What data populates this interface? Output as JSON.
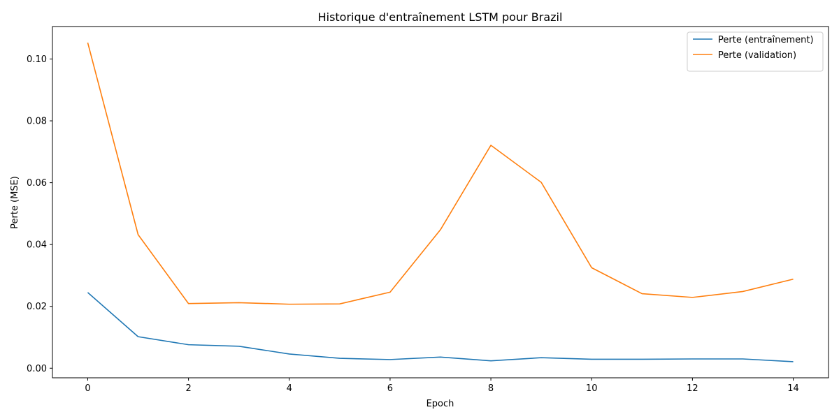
{
  "chart_data": {
    "type": "line",
    "title": "Historique d'entraînement LSTM pour Brazil",
    "xlabel": "Epoch",
    "ylabel": "Perte (MSE)",
    "xlim": [
      -0.7,
      14.7
    ],
    "ylim": [
      -0.0031,
      0.1105
    ],
    "xticks": [
      0,
      2,
      4,
      6,
      8,
      10,
      12,
      14
    ],
    "xtick_labels": [
      "0",
      "2",
      "4",
      "6",
      "8",
      "10",
      "12",
      "14"
    ],
    "yticks": [
      0.0,
      0.02,
      0.04,
      0.06,
      0.08,
      0.1
    ],
    "ytick_labels": [
      "0.00",
      "0.02",
      "0.04",
      "0.06",
      "0.08",
      "0.10"
    ],
    "grid": false,
    "legend_position": "top-right",
    "x": [
      0,
      1,
      2,
      3,
      4,
      5,
      6,
      7,
      8,
      9,
      10,
      11,
      12,
      13,
      14
    ],
    "series": [
      {
        "name": "Perte (entraînement)",
        "color": "#1f77b4",
        "values": [
          0.0245,
          0.0102,
          0.0076,
          0.0071,
          0.0046,
          0.0032,
          0.0028,
          0.0036,
          0.0024,
          0.0034,
          0.0029,
          0.0029,
          0.003,
          0.003,
          0.0021
        ]
      },
      {
        "name": "Perte (validation)",
        "color": "#ff7f0e",
        "values": [
          0.1053,
          0.0432,
          0.0209,
          0.0212,
          0.0207,
          0.0208,
          0.0246,
          0.0448,
          0.0721,
          0.0601,
          0.0325,
          0.0241,
          0.0229,
          0.0248,
          0.0288
        ]
      }
    ]
  }
}
